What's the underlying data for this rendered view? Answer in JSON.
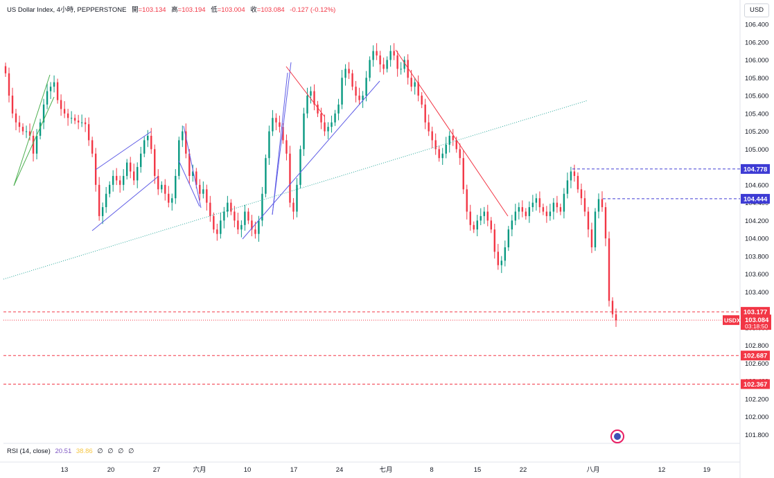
{
  "header": {
    "symbol": "US Dollar Index, 4小時, PEPPERSTONE",
    "open_label": "開",
    "open": "=103.134",
    "high_label": "高",
    "high": "=103.194",
    "low_label": "低",
    "low": "=103.004",
    "close_label": "收",
    "close": "=103.084",
    "change": "-0.127 (-0.12%)"
  },
  "currency": "USD",
  "rsi": {
    "label": "RSI (14, close)",
    "v1": "20.51",
    "v2": "38.86",
    "z": [
      "∅",
      "∅",
      "∅",
      "∅"
    ]
  },
  "colors": {
    "up": "#089981",
    "down": "#f23645",
    "blue": "#2962ff",
    "purple": "#5e5ce6",
    "green": "#4caf50",
    "dotted": "#26a69a"
  },
  "chart_data": {
    "type": "candlestick",
    "symbol": "US Dollar Index",
    "timeframe": "4小時",
    "ylim": [
      101.75,
      106.55
    ],
    "y_ticks": [
      "106.400",
      "106.200",
      "106.000",
      "105.800",
      "105.600",
      "105.400",
      "105.200",
      "105.000",
      "104.800",
      "104.600",
      "104.400",
      "104.200",
      "104.000",
      "103.800",
      "103.600",
      "103.400",
      "103.200",
      "103.000",
      "102.800",
      "102.600",
      "102.400",
      "102.200",
      "102.000",
      "101.800"
    ],
    "x_ticks": [
      "13",
      "20",
      "27",
      "六月",
      "10",
      "17",
      "24",
      "七月",
      "8",
      "15",
      "22",
      "八月",
      "12",
      "19"
    ],
    "series": [
      {
        "x": "13",
        "values": [
          105.85,
          105.6,
          105.4,
          105.3,
          105.25,
          105.2,
          105.2,
          105.15,
          104.95,
          105.15,
          105.3,
          105.5,
          105.65,
          105.7,
          105.75,
          105.55,
          105.45,
          105.4,
          105.35,
          105.35,
          105.32,
          105.3,
          105.3,
          105.28
        ]
      },
      {
        "x": "20",
        "values": [
          105.1,
          104.95,
          104.6,
          104.25,
          104.35,
          104.5,
          104.6,
          104.7,
          104.65,
          104.6,
          104.7,
          104.85,
          104.75,
          104.65,
          104.8,
          104.95,
          105.1,
          105.15,
          105.0,
          104.7,
          104.55,
          104.6,
          104.5,
          104.4
        ]
      },
      {
        "x": "27",
        "values": [
          104.45,
          104.7,
          105.1,
          105.2,
          104.95,
          104.7,
          104.75,
          104.6,
          104.5,
          104.55,
          104.4,
          104.25,
          104.1,
          104.05,
          104.2,
          104.3,
          104.4,
          104.3,
          104.2,
          104.1,
          104.15,
          104.3,
          104.2,
          104.1
        ]
      },
      {
        "x": "六月",
        "values": [
          104.05,
          104.2,
          104.5,
          104.9,
          105.2,
          105.35,
          105.3,
          105.25,
          105.1,
          104.95,
          104.4,
          104.3,
          104.6,
          105.0,
          105.4,
          105.6,
          105.65,
          105.5,
          105.4,
          105.3,
          105.2,
          105.25,
          105.3,
          105.4
        ]
      },
      {
        "x": "24",
        "values": [
          105.5,
          105.8,
          105.9,
          105.85,
          105.7,
          105.6,
          105.55,
          105.6,
          105.8,
          106.0,
          106.1,
          106.05,
          105.95,
          105.9,
          106.0,
          106.1,
          106.05,
          105.9,
          105.9,
          106.0,
          105.8,
          105.7,
          105.75,
          105.6
        ]
      },
      {
        "x": "七月",
        "values": [
          105.5,
          105.3,
          105.2,
          105.1,
          105.0,
          104.9,
          104.95,
          105.05,
          105.15,
          105.1,
          105.0,
          104.9,
          104.55,
          104.3,
          104.15,
          104.1,
          104.2,
          104.25,
          104.3,
          104.2,
          104.1,
          103.85,
          103.7,
          103.75
        ]
      },
      {
        "x": "22",
        "values": [
          103.9,
          104.1,
          104.2,
          104.3,
          104.35,
          104.3,
          104.25,
          104.35,
          104.4,
          104.45,
          104.35,
          104.3,
          104.25,
          104.3,
          104.4,
          104.35,
          104.3,
          104.5,
          104.65,
          104.75,
          104.7,
          104.55,
          104.45,
          104.3
        ]
      },
      {
        "x": "八月",
        "values": [
          104.1,
          103.9,
          104.3,
          104.44,
          104.35,
          104.0,
          103.3,
          103.15,
          103.084
        ]
      }
    ],
    "price_tags": [
      {
        "label": "104.778",
        "value": 104.778,
        "style": "purple-dashed"
      },
      {
        "label": "104.444",
        "value": 104.444,
        "style": "purple-dashed"
      },
      {
        "label": "103.177",
        "value": 103.177,
        "style": "red-dashed"
      },
      {
        "label": "103.084",
        "value": 103.084,
        "style": "last",
        "symbol": "USDX",
        "countdown": "03:18:50"
      },
      {
        "label": "102.687",
        "value": 102.687,
        "style": "red-dashed"
      },
      {
        "label": "102.367",
        "value": 102.367,
        "style": "red-dashed"
      }
    ]
  }
}
